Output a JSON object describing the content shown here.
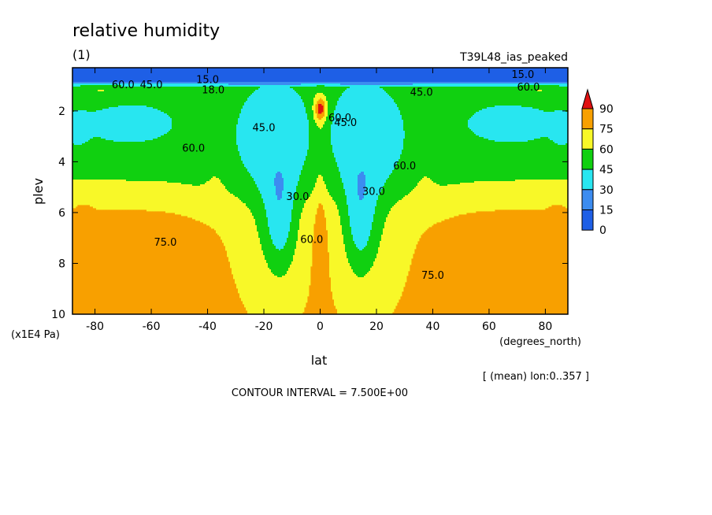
{
  "chart_data": {
    "type": "heatmap",
    "title": "relative humidity",
    "subtitle": "(1)",
    "run_label": "T39L48_ias_peaked",
    "xlabel": "lat",
    "x_unit": "(degrees_north)",
    "ylabel": "plev",
    "y_unit": "(x1E4 Pa)",
    "x_range": [
      -88,
      88
    ],
    "y_range": [
      0.3,
      10
    ],
    "y_inverted": true,
    "x_ticks": [
      -80,
      -60,
      -40,
      -20,
      0,
      20,
      40,
      60,
      80
    ],
    "y_ticks": [
      2,
      4,
      6,
      8,
      10
    ],
    "averaging_note": "[ (mean) lon:0..357 ]",
    "contour_interval_text": "CONTOUR INTERVAL = 7.500E+00",
    "colorbar": {
      "levels": [
        0,
        15,
        30,
        45,
        60,
        75,
        90
      ],
      "colors": [
        "#1e5fe6",
        "#3c8cf0",
        "#28e6f0",
        "#10d010",
        "#f8f828",
        "#f8a000",
        "#e01010"
      ],
      "extend": "max"
    },
    "contour_labels": [
      {
        "text": "15.0",
        "lat": -40,
        "plev": 0.9
      },
      {
        "text": "18.0",
        "lat": -38,
        "plev": 1.3
      },
      {
        "text": "60.0",
        "lat": -70,
        "plev": 1.1
      },
      {
        "text": "45.0",
        "lat": -60,
        "plev": 1.1
      },
      {
        "text": "45.0",
        "lat": 36,
        "plev": 1.4
      },
      {
        "text": "45.0",
        "lat": -20,
        "plev": 2.8
      },
      {
        "text": "45.0",
        "lat": 9,
        "plev": 2.6
      },
      {
        "text": "60.0",
        "lat": 7,
        "plev": 2.4
      },
      {
        "text": "60.0",
        "lat": -45,
        "plev": 3.6
      },
      {
        "text": "30.0",
        "lat": -8,
        "plev": 5.5
      },
      {
        "text": "30.0",
        "lat": 19,
        "plev": 5.3
      },
      {
        "text": "60.0",
        "lat": 30,
        "plev": 4.3
      },
      {
        "text": "60.0",
        "lat": -3,
        "plev": 7.2
      },
      {
        "text": "75.0",
        "lat": -55,
        "plev": 7.3
      },
      {
        "text": "75.0",
        "lat": 40,
        "plev": 8.6
      },
      {
        "text": "15.0",
        "lat": 72,
        "plev": 0.7
      },
      {
        "text": "60.0",
        "lat": 74,
        "plev": 1.2
      }
    ]
  }
}
